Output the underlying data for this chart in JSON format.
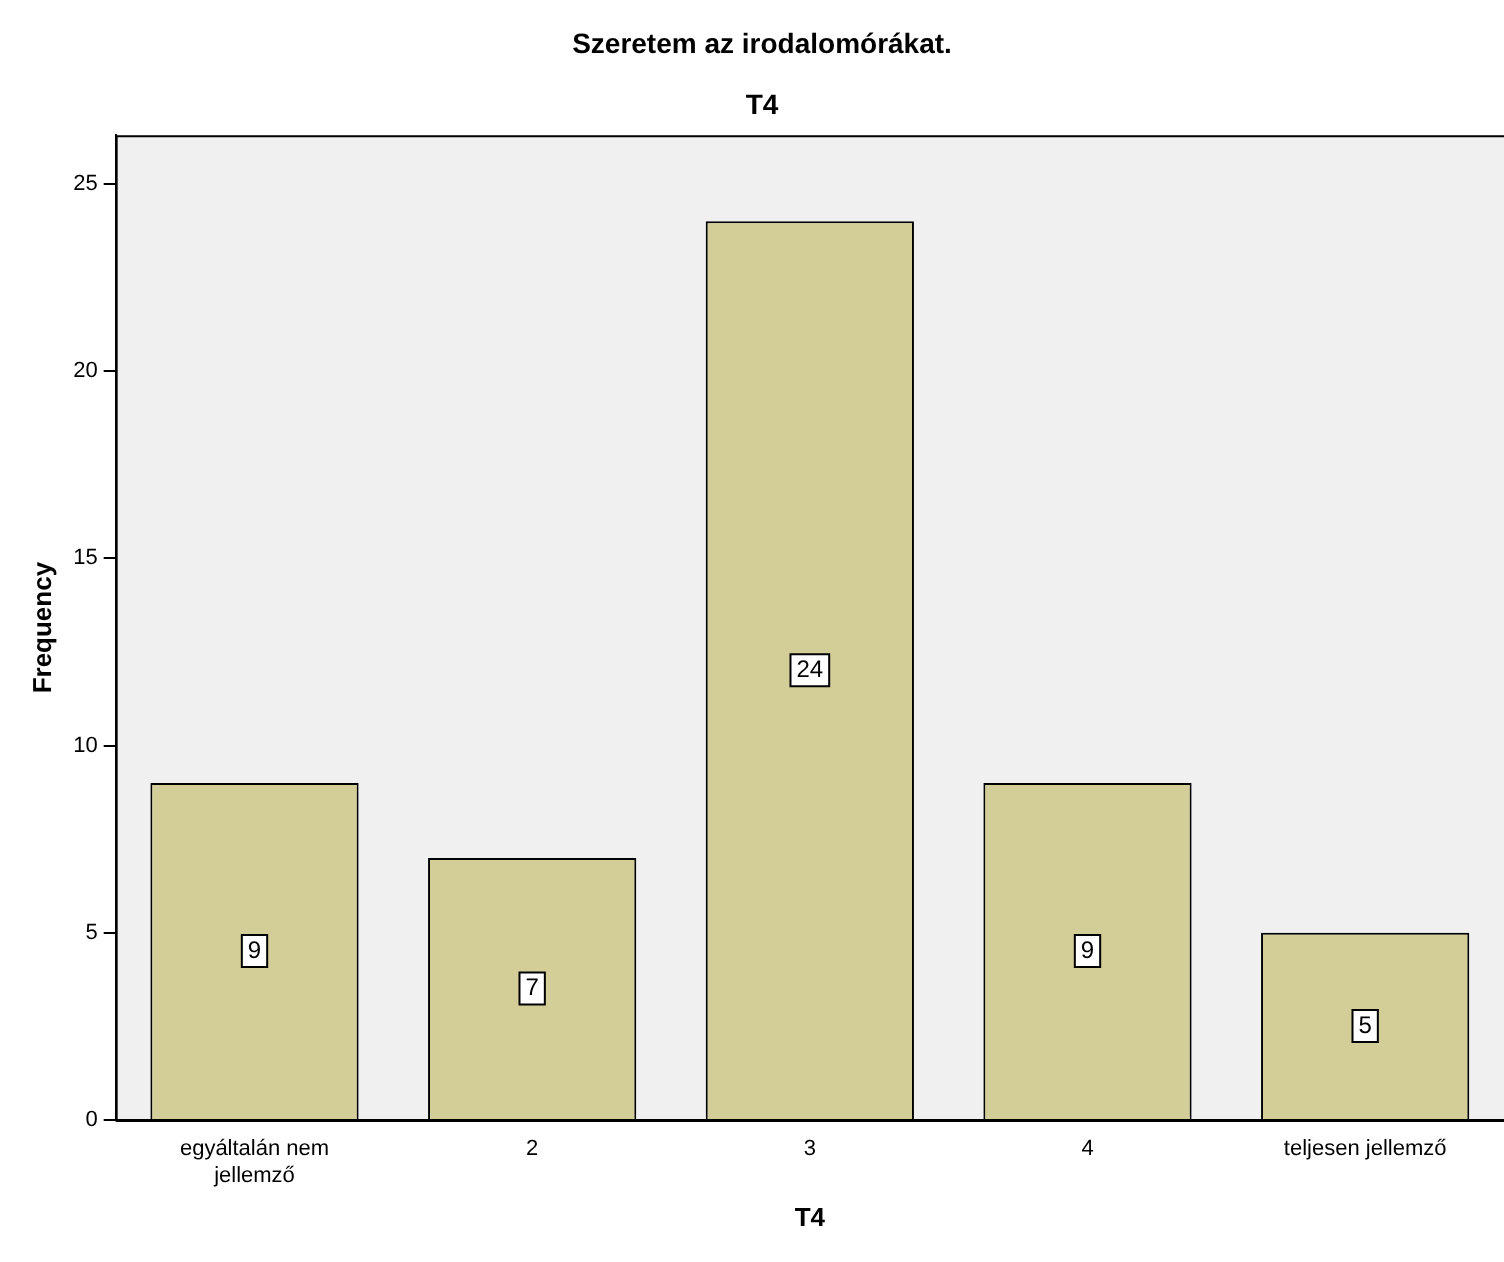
{
  "chart_data": {
    "type": "bar",
    "title": "Szeretem az irodalomórákat.",
    "subtitle": "T4",
    "xlabel": "T4",
    "ylabel": "Frequency",
    "categories": [
      "egyáltalán nem jellemző",
      "2",
      "3",
      "4",
      "teljesen jellemző"
    ],
    "values": [
      9,
      7,
      24,
      9,
      5
    ],
    "color": "#d3ce97",
    "ylim": [
      0,
      26.3
    ],
    "yticks": [
      0,
      5,
      10,
      15,
      20,
      25
    ],
    "grid": false,
    "legend": false,
    "data_labels": true
  }
}
